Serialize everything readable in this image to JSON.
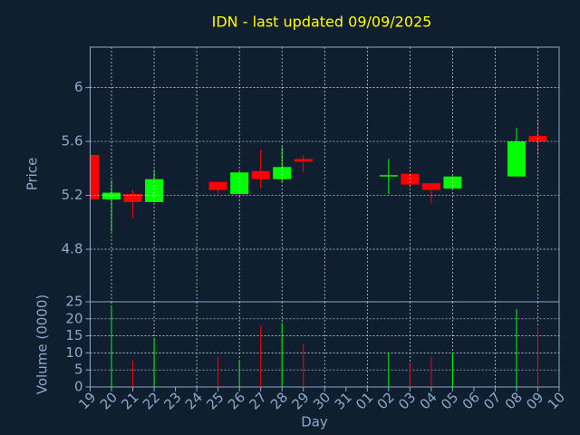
{
  "chart_data": [
    {
      "type": "candlestick",
      "title": "IDN - last updated 09/09/2025",
      "ylabel": "Price",
      "categories": [
        "19",
        "20",
        "21",
        "22",
        "23",
        "24",
        "25",
        "26",
        "27",
        "28",
        "29",
        "30",
        "31",
        "01",
        "02",
        "03",
        "04",
        "05",
        "06",
        "07",
        "08",
        "09",
        "10"
      ],
      "open": [
        5.5,
        5.17,
        5.21,
        5.15,
        null,
        null,
        5.3,
        5.21,
        5.38,
        5.32,
        5.47,
        null,
        null,
        null,
        5.35,
        5.36,
        5.29,
        5.25,
        null,
        null,
        5.34,
        5.64,
        null
      ],
      "high": [
        5.5,
        5.31,
        5.24,
        5.39,
        null,
        null,
        5.3,
        5.37,
        5.54,
        5.56,
        5.5,
        null,
        null,
        null,
        5.47,
        5.36,
        5.29,
        5.34,
        null,
        null,
        5.7,
        5.76,
        null
      ],
      "low": [
        5.17,
        4.93,
        5.03,
        5.15,
        null,
        null,
        5.21,
        5.21,
        5.25,
        5.3,
        5.37,
        null,
        null,
        null,
        5.21,
        5.26,
        5.14,
        5.25,
        null,
        null,
        5.34,
        5.5,
        null
      ],
      "close": [
        5.17,
        5.22,
        5.15,
        5.32,
        null,
        null,
        5.24,
        5.37,
        5.32,
        5.41,
        5.45,
        null,
        null,
        null,
        5.35,
        5.28,
        5.24,
        5.34,
        null,
        null,
        5.6,
        5.6,
        null
      ],
      "up_color": "#00ff00",
      "down_color": "#ff0000",
      "ylim": [
        4.41,
        6.3
      ],
      "yticks": [
        4.8,
        5.2,
        5.6,
        6
      ],
      "grid": true
    },
    {
      "type": "volume",
      "ylabel": "Volume (0000)",
      "xlabel": "Day",
      "values": [
        null,
        23.9,
        7.8,
        14.5,
        null,
        null,
        8.9,
        7.8,
        18,
        18.8,
        12.6,
        null,
        null,
        null,
        10,
        6.7,
        8.9,
        10,
        null,
        null,
        22.9,
        17.5,
        null
      ],
      "ylim": [
        0,
        25
      ],
      "yticks": [
        0,
        5,
        10,
        15,
        20,
        25
      ],
      "grid": true
    }
  ]
}
